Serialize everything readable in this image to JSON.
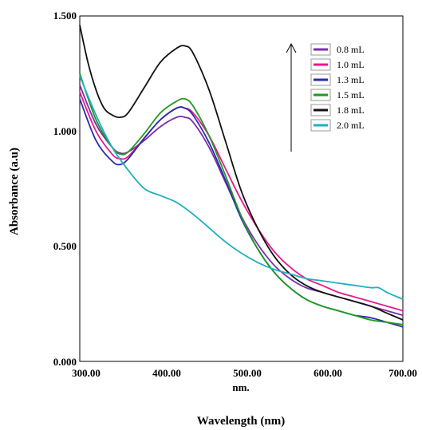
{
  "chart_data": {
    "type": "line",
    "xlabel_inner": "nm.",
    "xlabel": "Wavelength (nm)",
    "ylabel": "Absorbance (a.u)",
    "xlim": [
      300,
      700
    ],
    "ylim": [
      0,
      1.5
    ],
    "x_ticks": [
      "300.00",
      "400.00",
      "500.00",
      "600.00",
      "700.00"
    ],
    "y_ticks": [
      "0.000",
      "0.500",
      "1.000",
      "1.500"
    ],
    "grid": false,
    "legend_position": "top-right",
    "series": [
      {
        "name": "0.8 mL",
        "color": "#7b2fa8",
        "points": [
          [
            300,
            1.2
          ],
          [
            320,
            1.03
          ],
          [
            340,
            0.93
          ],
          [
            350,
            0.905
          ],
          [
            360,
            0.91
          ],
          [
            380,
            0.96
          ],
          [
            400,
            1.02
          ],
          [
            420,
            1.06
          ],
          [
            430,
            1.06
          ],
          [
            440,
            1.04
          ],
          [
            460,
            0.93
          ],
          [
            480,
            0.78
          ],
          [
            500,
            0.63
          ],
          [
            520,
            0.51
          ],
          [
            540,
            0.42
          ],
          [
            560,
            0.36
          ],
          [
            580,
            0.32
          ],
          [
            600,
            0.3
          ],
          [
            620,
            0.28
          ],
          [
            640,
            0.26
          ],
          [
            660,
            0.24
          ],
          [
            680,
            0.22
          ],
          [
            700,
            0.2
          ]
        ]
      },
      {
        "name": "1.0 mL",
        "color": "#e8198b",
        "points": [
          [
            300,
            1.17
          ],
          [
            320,
            1.0
          ],
          [
            340,
            0.9
          ],
          [
            350,
            0.88
          ],
          [
            360,
            0.89
          ],
          [
            380,
            0.97
          ],
          [
            400,
            1.05
          ],
          [
            420,
            1.1
          ],
          [
            430,
            1.1
          ],
          [
            440,
            1.08
          ],
          [
            460,
            0.98
          ],
          [
            480,
            0.84
          ],
          [
            500,
            0.7
          ],
          [
            520,
            0.58
          ],
          [
            540,
            0.48
          ],
          [
            560,
            0.41
          ],
          [
            580,
            0.36
          ],
          [
            600,
            0.33
          ],
          [
            620,
            0.3
          ],
          [
            640,
            0.28
          ],
          [
            660,
            0.26
          ],
          [
            680,
            0.24
          ],
          [
            700,
            0.22
          ]
        ]
      },
      {
        "name": "1.3 mL",
        "color": "#2a2ab0",
        "points": [
          [
            300,
            1.14
          ],
          [
            320,
            0.96
          ],
          [
            340,
            0.87
          ],
          [
            350,
            0.855
          ],
          [
            360,
            0.88
          ],
          [
            380,
            0.97
          ],
          [
            400,
            1.05
          ],
          [
            420,
            1.1
          ],
          [
            430,
            1.1
          ],
          [
            440,
            1.07
          ],
          [
            460,
            0.95
          ],
          [
            480,
            0.79
          ],
          [
            500,
            0.62
          ],
          [
            520,
            0.49
          ],
          [
            540,
            0.39
          ],
          [
            560,
            0.32
          ],
          [
            580,
            0.27
          ],
          [
            600,
            0.24
          ],
          [
            620,
            0.22
          ],
          [
            640,
            0.2
          ],
          [
            660,
            0.19
          ],
          [
            680,
            0.17
          ],
          [
            700,
            0.15
          ]
        ]
      },
      {
        "name": "1.5 mL",
        "color": "#1f9a1f",
        "points": [
          [
            300,
            1.25
          ],
          [
            320,
            1.05
          ],
          [
            340,
            0.93
          ],
          [
            350,
            0.9
          ],
          [
            360,
            0.91
          ],
          [
            380,
            0.99
          ],
          [
            400,
            1.08
          ],
          [
            420,
            1.13
          ],
          [
            430,
            1.14
          ],
          [
            440,
            1.11
          ],
          [
            460,
            0.98
          ],
          [
            480,
            0.81
          ],
          [
            500,
            0.63
          ],
          [
            520,
            0.49
          ],
          [
            540,
            0.39
          ],
          [
            560,
            0.32
          ],
          [
            580,
            0.27
          ],
          [
            600,
            0.24
          ],
          [
            620,
            0.22
          ],
          [
            640,
            0.2
          ],
          [
            660,
            0.18
          ],
          [
            680,
            0.17
          ],
          [
            700,
            0.16
          ]
        ]
      },
      {
        "name": "1.8 mL",
        "color": "#111111",
        "points": [
          [
            300,
            1.46
          ],
          [
            310,
            1.3
          ],
          [
            320,
            1.18
          ],
          [
            330,
            1.1
          ],
          [
            340,
            1.07
          ],
          [
            350,
            1.06
          ],
          [
            360,
            1.08
          ],
          [
            380,
            1.19
          ],
          [
            400,
            1.3
          ],
          [
            420,
            1.36
          ],
          [
            430,
            1.37
          ],
          [
            440,
            1.34
          ],
          [
            460,
            1.18
          ],
          [
            480,
            0.96
          ],
          [
            500,
            0.74
          ],
          [
            520,
            0.58
          ],
          [
            540,
            0.46
          ],
          [
            560,
            0.38
          ],
          [
            580,
            0.33
          ],
          [
            600,
            0.3
          ],
          [
            620,
            0.28
          ],
          [
            640,
            0.26
          ],
          [
            660,
            0.24
          ],
          [
            680,
            0.21
          ],
          [
            700,
            0.18
          ]
        ]
      },
      {
        "name": "2.0 mL",
        "color": "#1fb0c0",
        "points": [
          [
            300,
            1.24
          ],
          [
            320,
            1.07
          ],
          [
            340,
            0.93
          ],
          [
            360,
            0.83
          ],
          [
            380,
            0.75
          ],
          [
            400,
            0.72
          ],
          [
            420,
            0.69
          ],
          [
            440,
            0.64
          ],
          [
            460,
            0.58
          ],
          [
            480,
            0.52
          ],
          [
            500,
            0.47
          ],
          [
            520,
            0.43
          ],
          [
            540,
            0.4
          ],
          [
            560,
            0.38
          ],
          [
            580,
            0.36
          ],
          [
            600,
            0.35
          ],
          [
            620,
            0.34
          ],
          [
            640,
            0.33
          ],
          [
            660,
            0.32
          ],
          [
            670,
            0.32
          ],
          [
            680,
            0.3
          ],
          [
            700,
            0.27
          ]
        ]
      }
    ]
  }
}
